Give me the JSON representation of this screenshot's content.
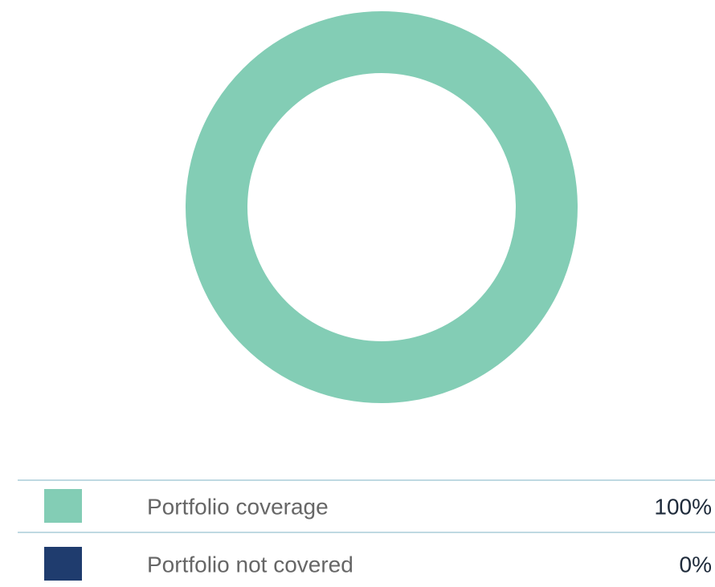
{
  "chart_data": {
    "type": "donut",
    "categories": [
      "Portfolio coverage",
      "Portfolio not covered"
    ],
    "values": [
      100,
      0
    ],
    "value_labels": [
      "100%",
      "0%"
    ],
    "colors": [
      "#83cdb5",
      "#1f3c6e"
    ]
  }
}
